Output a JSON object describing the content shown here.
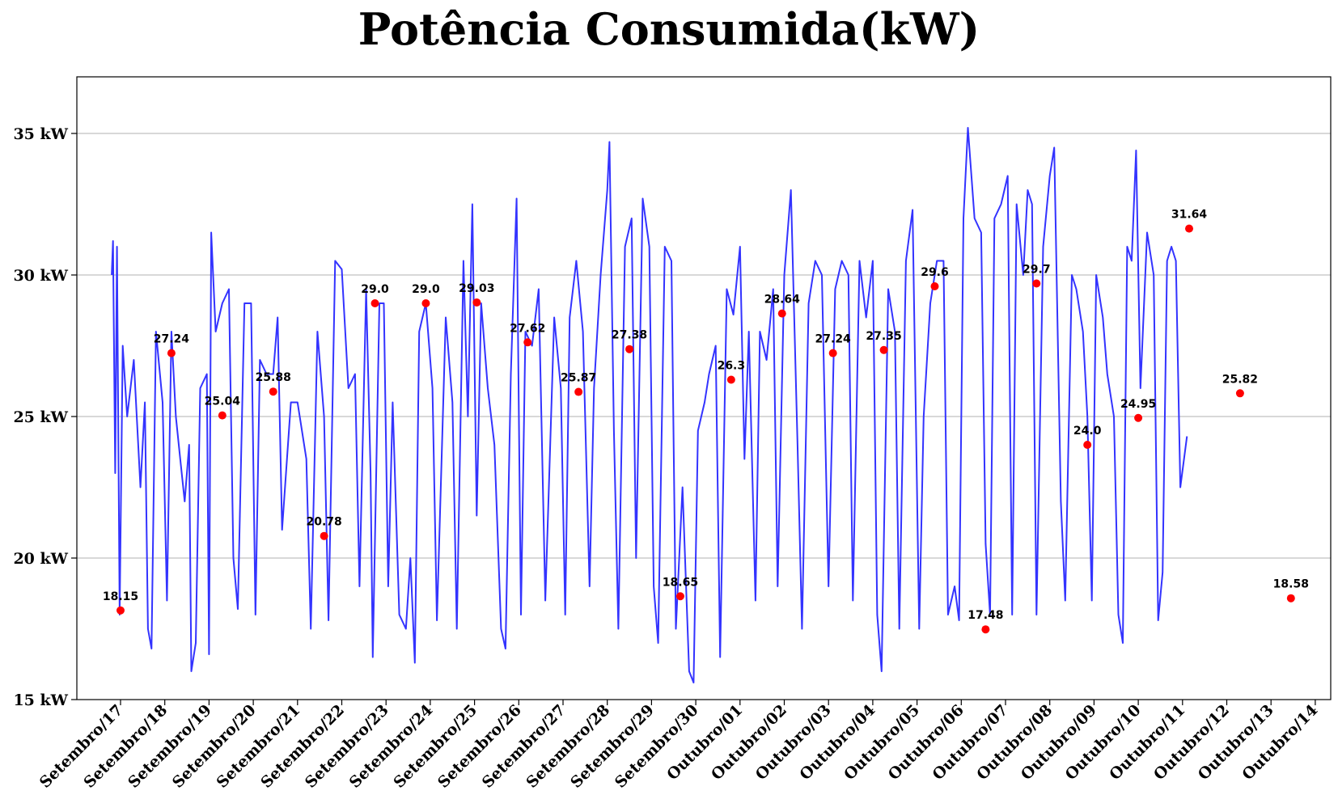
{
  "chart_data": {
    "type": "line",
    "title": "Potência Consumida(kW)",
    "xlabel": "",
    "ylabel": "",
    "ylim": [
      15,
      37
    ],
    "grid": "horizontal",
    "yticks": [
      {
        "value": 15,
        "label": "15 kW"
      },
      {
        "value": 20,
        "label": "20 kW"
      },
      {
        "value": 25,
        "label": "25 kW"
      },
      {
        "value": 30,
        "label": "30 kW"
      },
      {
        "value": 35,
        "label": "35 kW"
      }
    ],
    "categories": [
      "Setembro/17",
      "Setembro/18",
      "Setembro/19",
      "Setembro/20",
      "Setembro/21",
      "Setembro/22",
      "Setembro/23",
      "Setembro/24",
      "Setembro/25",
      "Setembro/26",
      "Setembro/27",
      "Setembro/28",
      "Setembro/29",
      "Setembro/30",
      "Outubro/01",
      "Outubro/02",
      "Outubro/03",
      "Outubro/04",
      "Outubro/05",
      "Outubro/06",
      "Outubro/07",
      "Outubro/08",
      "Outubro/09",
      "Outubro/10",
      "Outubro/11",
      "Outubro/12",
      "Outubro/13",
      "Outubro/14"
    ],
    "series": [
      {
        "color": "#3333ff",
        "points": [
          [
            -0.2,
            30.0
          ],
          [
            -0.17,
            31.2
          ],
          [
            -0.12,
            23.0
          ],
          [
            -0.08,
            31.0
          ],
          [
            -0.02,
            18.0
          ],
          [
            0.05,
            27.5
          ],
          [
            0.15,
            25.0
          ],
          [
            0.3,
            27.0
          ],
          [
            0.45,
            22.5
          ],
          [
            0.55,
            25.5
          ],
          [
            0.62,
            17.5
          ],
          [
            0.7,
            16.8
          ],
          [
            0.8,
            28.0
          ],
          [
            0.95,
            25.5
          ],
          [
            1.05,
            18.5
          ],
          [
            1.15,
            28.0
          ],
          [
            1.25,
            25.0
          ],
          [
            1.35,
            23.5
          ],
          [
            1.45,
            22.0
          ],
          [
            1.55,
            24.0
          ],
          [
            1.6,
            16.0
          ],
          [
            1.7,
            17.0
          ],
          [
            1.8,
            26.0
          ],
          [
            1.95,
            26.5
          ],
          [
            2.0,
            16.6
          ],
          [
            2.05,
            31.5
          ],
          [
            2.15,
            28.0
          ],
          [
            2.3,
            29.0
          ],
          [
            2.45,
            29.5
          ],
          [
            2.55,
            20.0
          ],
          [
            2.65,
            18.2
          ],
          [
            2.8,
            29.0
          ],
          [
            2.95,
            29.0
          ],
          [
            3.05,
            18.0
          ],
          [
            3.15,
            27.0
          ],
          [
            3.3,
            26.5
          ],
          [
            3.45,
            26.5
          ],
          [
            3.55,
            28.5
          ],
          [
            3.65,
            21.0
          ],
          [
            3.85,
            25.5
          ],
          [
            4.0,
            25.5
          ],
          [
            4.2,
            23.5
          ],
          [
            4.3,
            17.5
          ],
          [
            4.45,
            28.0
          ],
          [
            4.6,
            25.0
          ],
          [
            4.7,
            17.8
          ],
          [
            4.85,
            30.5
          ],
          [
            5.0,
            30.2
          ],
          [
            5.15,
            26.0
          ],
          [
            5.3,
            26.5
          ],
          [
            5.4,
            19.0
          ],
          [
            5.55,
            29.5
          ],
          [
            5.65,
            23.0
          ],
          [
            5.7,
            16.5
          ],
          [
            5.85,
            29.0
          ],
          [
            5.95,
            29.0
          ],
          [
            6.05,
            19.0
          ],
          [
            6.15,
            25.5
          ],
          [
            6.3,
            18.0
          ],
          [
            6.45,
            17.5
          ],
          [
            6.55,
            20.0
          ],
          [
            6.65,
            16.3
          ],
          [
            6.75,
            28.0
          ],
          [
            6.9,
            29.0
          ],
          [
            7.05,
            26.0
          ],
          [
            7.15,
            17.8
          ],
          [
            7.35,
            28.5
          ],
          [
            7.5,
            25.5
          ],
          [
            7.6,
            17.5
          ],
          [
            7.75,
            30.5
          ],
          [
            7.85,
            25.0
          ],
          [
            7.95,
            32.5
          ],
          [
            8.05,
            21.5
          ],
          [
            8.15,
            29.0
          ],
          [
            8.3,
            26.0
          ],
          [
            8.45,
            24.0
          ],
          [
            8.6,
            17.5
          ],
          [
            8.7,
            16.8
          ],
          [
            8.82,
            26.5
          ],
          [
            8.95,
            32.7
          ],
          [
            9.05,
            18.0
          ],
          [
            9.15,
            28.0
          ],
          [
            9.3,
            27.5
          ],
          [
            9.45,
            29.5
          ],
          [
            9.6,
            18.5
          ],
          [
            9.8,
            28.5
          ],
          [
            9.95,
            26.0
          ],
          [
            10.05,
            18.0
          ],
          [
            10.15,
            28.5
          ],
          [
            10.3,
            30.5
          ],
          [
            10.45,
            28.0
          ],
          [
            10.6,
            19.0
          ],
          [
            10.7,
            26.0
          ],
          [
            10.85,
            30.0
          ],
          [
            11.0,
            33.0
          ],
          [
            11.05,
            34.7
          ],
          [
            11.15,
            24.5
          ],
          [
            11.25,
            17.5
          ],
          [
            11.4,
            31.0
          ],
          [
            11.55,
            32.0
          ],
          [
            11.65,
            20.0
          ],
          [
            11.8,
            32.7
          ],
          [
            11.95,
            31.0
          ],
          [
            12.05,
            19.0
          ],
          [
            12.15,
            17.0
          ],
          [
            12.3,
            31.0
          ],
          [
            12.45,
            30.5
          ],
          [
            12.55,
            17.5
          ],
          [
            12.7,
            22.5
          ],
          [
            12.85,
            16.0
          ],
          [
            12.95,
            15.6
          ],
          [
            13.05,
            24.5
          ],
          [
            13.2,
            25.5
          ],
          [
            13.3,
            26.5
          ],
          [
            13.45,
            27.5
          ],
          [
            13.55,
            16.5
          ],
          [
            13.7,
            29.5
          ],
          [
            13.85,
            28.6
          ],
          [
            14.0,
            31.0
          ],
          [
            14.1,
            23.5
          ],
          [
            14.2,
            28.0
          ],
          [
            14.35,
            18.5
          ],
          [
            14.45,
            28.0
          ],
          [
            14.6,
            27.0
          ],
          [
            14.75,
            29.5
          ],
          [
            14.85,
            19.0
          ],
          [
            15.0,
            30.0
          ],
          [
            15.15,
            33.0
          ],
          [
            15.3,
            24.0
          ],
          [
            15.4,
            17.5
          ],
          [
            15.55,
            29.0
          ],
          [
            15.7,
            30.5
          ],
          [
            15.85,
            30.0
          ],
          [
            16.0,
            19.0
          ],
          [
            16.15,
            29.5
          ],
          [
            16.3,
            30.5
          ],
          [
            16.45,
            30.0
          ],
          [
            16.55,
            18.5
          ],
          [
            16.7,
            30.5
          ],
          [
            16.85,
            28.5
          ],
          [
            17.0,
            30.5
          ],
          [
            17.1,
            18.0
          ],
          [
            17.2,
            16.0
          ],
          [
            17.35,
            29.5
          ],
          [
            17.5,
            28.0
          ],
          [
            17.6,
            17.5
          ],
          [
            17.75,
            30.5
          ],
          [
            17.9,
            32.3
          ],
          [
            18.05,
            17.5
          ],
          [
            18.15,
            25.0
          ],
          [
            18.3,
            29.0
          ],
          [
            18.45,
            30.5
          ],
          [
            18.6,
            30.5
          ],
          [
            18.7,
            18.0
          ],
          [
            18.85,
            19.0
          ],
          [
            18.95,
            17.8
          ],
          [
            19.05,
            32.0
          ],
          [
            19.15,
            35.2
          ],
          [
            19.3,
            32.0
          ],
          [
            19.45,
            31.5
          ],
          [
            19.55,
            20.5
          ],
          [
            19.65,
            18.0
          ],
          [
            19.75,
            32.0
          ],
          [
            19.9,
            32.5
          ],
          [
            20.05,
            33.5
          ],
          [
            20.15,
            18.0
          ],
          [
            20.25,
            32.5
          ],
          [
            20.4,
            30.0
          ],
          [
            20.5,
            33.0
          ],
          [
            20.6,
            32.5
          ],
          [
            20.7,
            18.0
          ],
          [
            20.85,
            31.0
          ],
          [
            21.0,
            33.5
          ],
          [
            21.1,
            34.5
          ],
          [
            21.25,
            22.0
          ],
          [
            21.35,
            18.5
          ],
          [
            21.5,
            30.0
          ],
          [
            21.6,
            29.5
          ],
          [
            21.75,
            28.0
          ],
          [
            21.85,
            25.0
          ],
          [
            21.95,
            18.5
          ],
          [
            22.05,
            30.0
          ],
          [
            22.2,
            28.5
          ],
          [
            22.3,
            26.5
          ],
          [
            22.45,
            25.0
          ],
          [
            22.55,
            18.0
          ],
          [
            22.65,
            17.0
          ],
          [
            22.75,
            31.0
          ],
          [
            22.85,
            30.5
          ],
          [
            22.95,
            34.4
          ],
          [
            23.05,
            26.0
          ],
          [
            23.2,
            31.5
          ],
          [
            23.35,
            30.0
          ],
          [
            23.45,
            17.8
          ],
          [
            23.55,
            19.5
          ],
          [
            23.65,
            30.5
          ],
          [
            23.75,
            31.0
          ],
          [
            23.85,
            30.5
          ],
          [
            23.95,
            22.5
          ],
          [
            24.1,
            24.3
          ]
        ]
      }
    ],
    "point_labels": [
      {
        "x": 0.0,
        "y": 18.15,
        "label": "18.15"
      },
      {
        "x": 1.15,
        "y": 27.24,
        "label": "27.24"
      },
      {
        "x": 2.3,
        "y": 25.04,
        "label": "25.04"
      },
      {
        "x": 3.45,
        "y": 25.88,
        "label": "25.88"
      },
      {
        "x": 4.6,
        "y": 20.78,
        "label": "20.78"
      },
      {
        "x": 5.75,
        "y": 29.0,
        "label": "29.0"
      },
      {
        "x": 6.9,
        "y": 29.0,
        "label": "29.0"
      },
      {
        "x": 8.05,
        "y": 29.03,
        "label": "29.03"
      },
      {
        "x": 9.2,
        "y": 27.62,
        "label": "27.62"
      },
      {
        "x": 10.35,
        "y": 25.87,
        "label": "25.87"
      },
      {
        "x": 11.5,
        "y": 27.38,
        "label": "27.38"
      },
      {
        "x": 12.65,
        "y": 18.65,
        "label": "18.65"
      },
      {
        "x": 13.8,
        "y": 26.3,
        "label": "26.3"
      },
      {
        "x": 14.95,
        "y": 28.64,
        "label": "28.64"
      },
      {
        "x": 16.1,
        "y": 27.24,
        "label": "27.24"
      },
      {
        "x": 17.25,
        "y": 27.35,
        "label": "27.35"
      },
      {
        "x": 18.4,
        "y": 29.6,
        "label": "29.6"
      },
      {
        "x": 19.55,
        "y": 17.48,
        "label": "17.48"
      },
      {
        "x": 20.7,
        "y": 29.7,
        "label": "29.7"
      },
      {
        "x": 21.85,
        "y": 24.0,
        "label": "24.0"
      },
      {
        "x": 23.0,
        "y": 24.95,
        "label": "24.95"
      },
      {
        "x": 24.15,
        "y": 31.64,
        "label": "31.64"
      },
      {
        "x": 25.3,
        "y": 25.82,
        "label": "25.82"
      },
      {
        "x": 26.45,
        "y": 18.58,
        "label": "18.58"
      }
    ],
    "marker_color": "#ff0000"
  }
}
